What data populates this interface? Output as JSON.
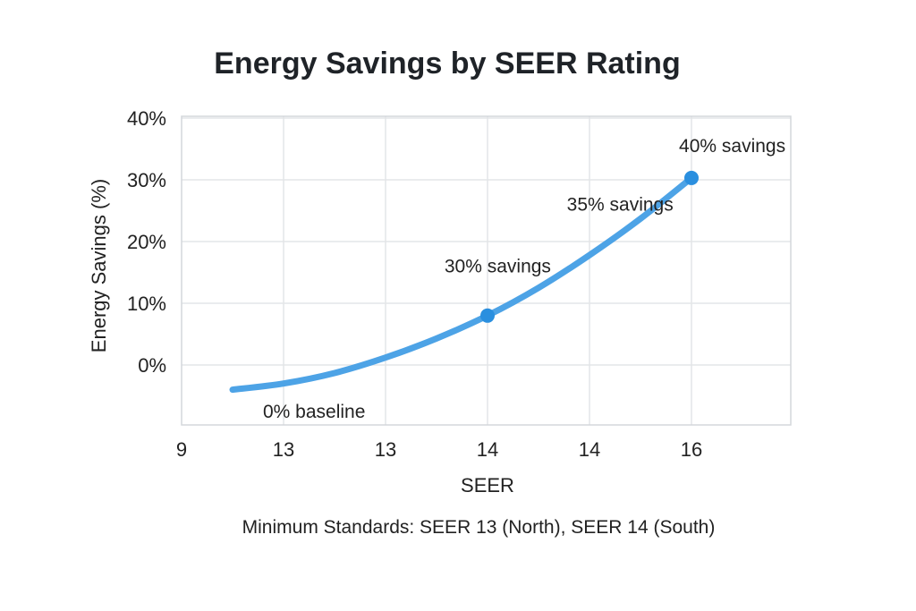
{
  "chart_data": {
    "type": "line",
    "title": "Energy Savings by SEER Rating",
    "xlabel": "SEER",
    "ylabel": "Energy Savings (%)",
    "x_tick_labels": [
      "9",
      "13",
      "13",
      "14",
      "14",
      "16"
    ],
    "y_tick_labels": [
      "40%",
      "30%",
      "20%",
      "10%",
      "0%"
    ],
    "ylim": [
      -10,
      40
    ],
    "series": [
      {
        "name": "Energy Savings",
        "color": "#4da3e6",
        "points": [
          {
            "x_index": 0.5,
            "y": -4
          },
          {
            "x_index": 1.0,
            "y": -3
          },
          {
            "x_index": 1.5,
            "y": -1.3
          },
          {
            "x_index": 2.0,
            "y": 1.2
          },
          {
            "x_index": 2.5,
            "y": 4.3
          },
          {
            "x_index": 3.0,
            "y": 8
          },
          {
            "x_index": 3.5,
            "y": 12.5
          },
          {
            "x_index": 4.0,
            "y": 17.8
          },
          {
            "x_index": 4.5,
            "y": 23.7
          },
          {
            "x_index": 5.0,
            "y": 30.3
          }
        ],
        "markers": [
          {
            "x_index": 3.0,
            "y": 8
          },
          {
            "x_index": 5.0,
            "y": 30.3
          }
        ]
      }
    ],
    "annotations": [
      {
        "text": "0% baseline",
        "x_index": 1.3,
        "y": -7.5
      },
      {
        "text": "30% savings",
        "x_index": 3.1,
        "y": 16
      },
      {
        "text": "35% savings",
        "x_index": 4.3,
        "y": 26
      },
      {
        "text": "40% savings",
        "x_index": 5.4,
        "y": 35.5
      }
    ],
    "grid": true,
    "footnote": "Minimum Standards: SEER 13 (North), SEER 14 (South)"
  }
}
